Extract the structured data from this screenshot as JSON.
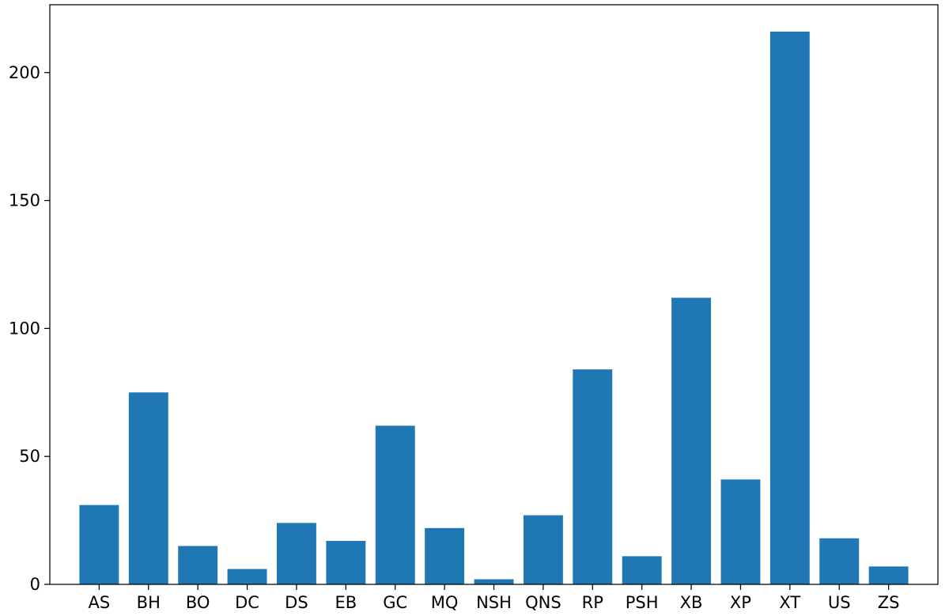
{
  "chart_data": {
    "type": "bar",
    "title": "",
    "xlabel": "",
    "ylabel": "",
    "categories": [
      "AS",
      "BH",
      "BO",
      "DC",
      "DS",
      "EB",
      "GC",
      "MQ",
      "NSH",
      "QNS",
      "RP",
      "PSH",
      "XB",
      "XP",
      "XT",
      "US",
      "ZS"
    ],
    "values": [
      31,
      75,
      15,
      6,
      24,
      17,
      62,
      22,
      2,
      27,
      84,
      11,
      112,
      41,
      216,
      18,
      7
    ],
    "ylim": [
      0,
      226.5
    ],
    "yticks": [
      0,
      50,
      100,
      150,
      200
    ],
    "grid": false,
    "legend": "none",
    "colors": {
      "bar": "#1f77b4",
      "axis": "#000000",
      "background": "#ffffff"
    }
  }
}
